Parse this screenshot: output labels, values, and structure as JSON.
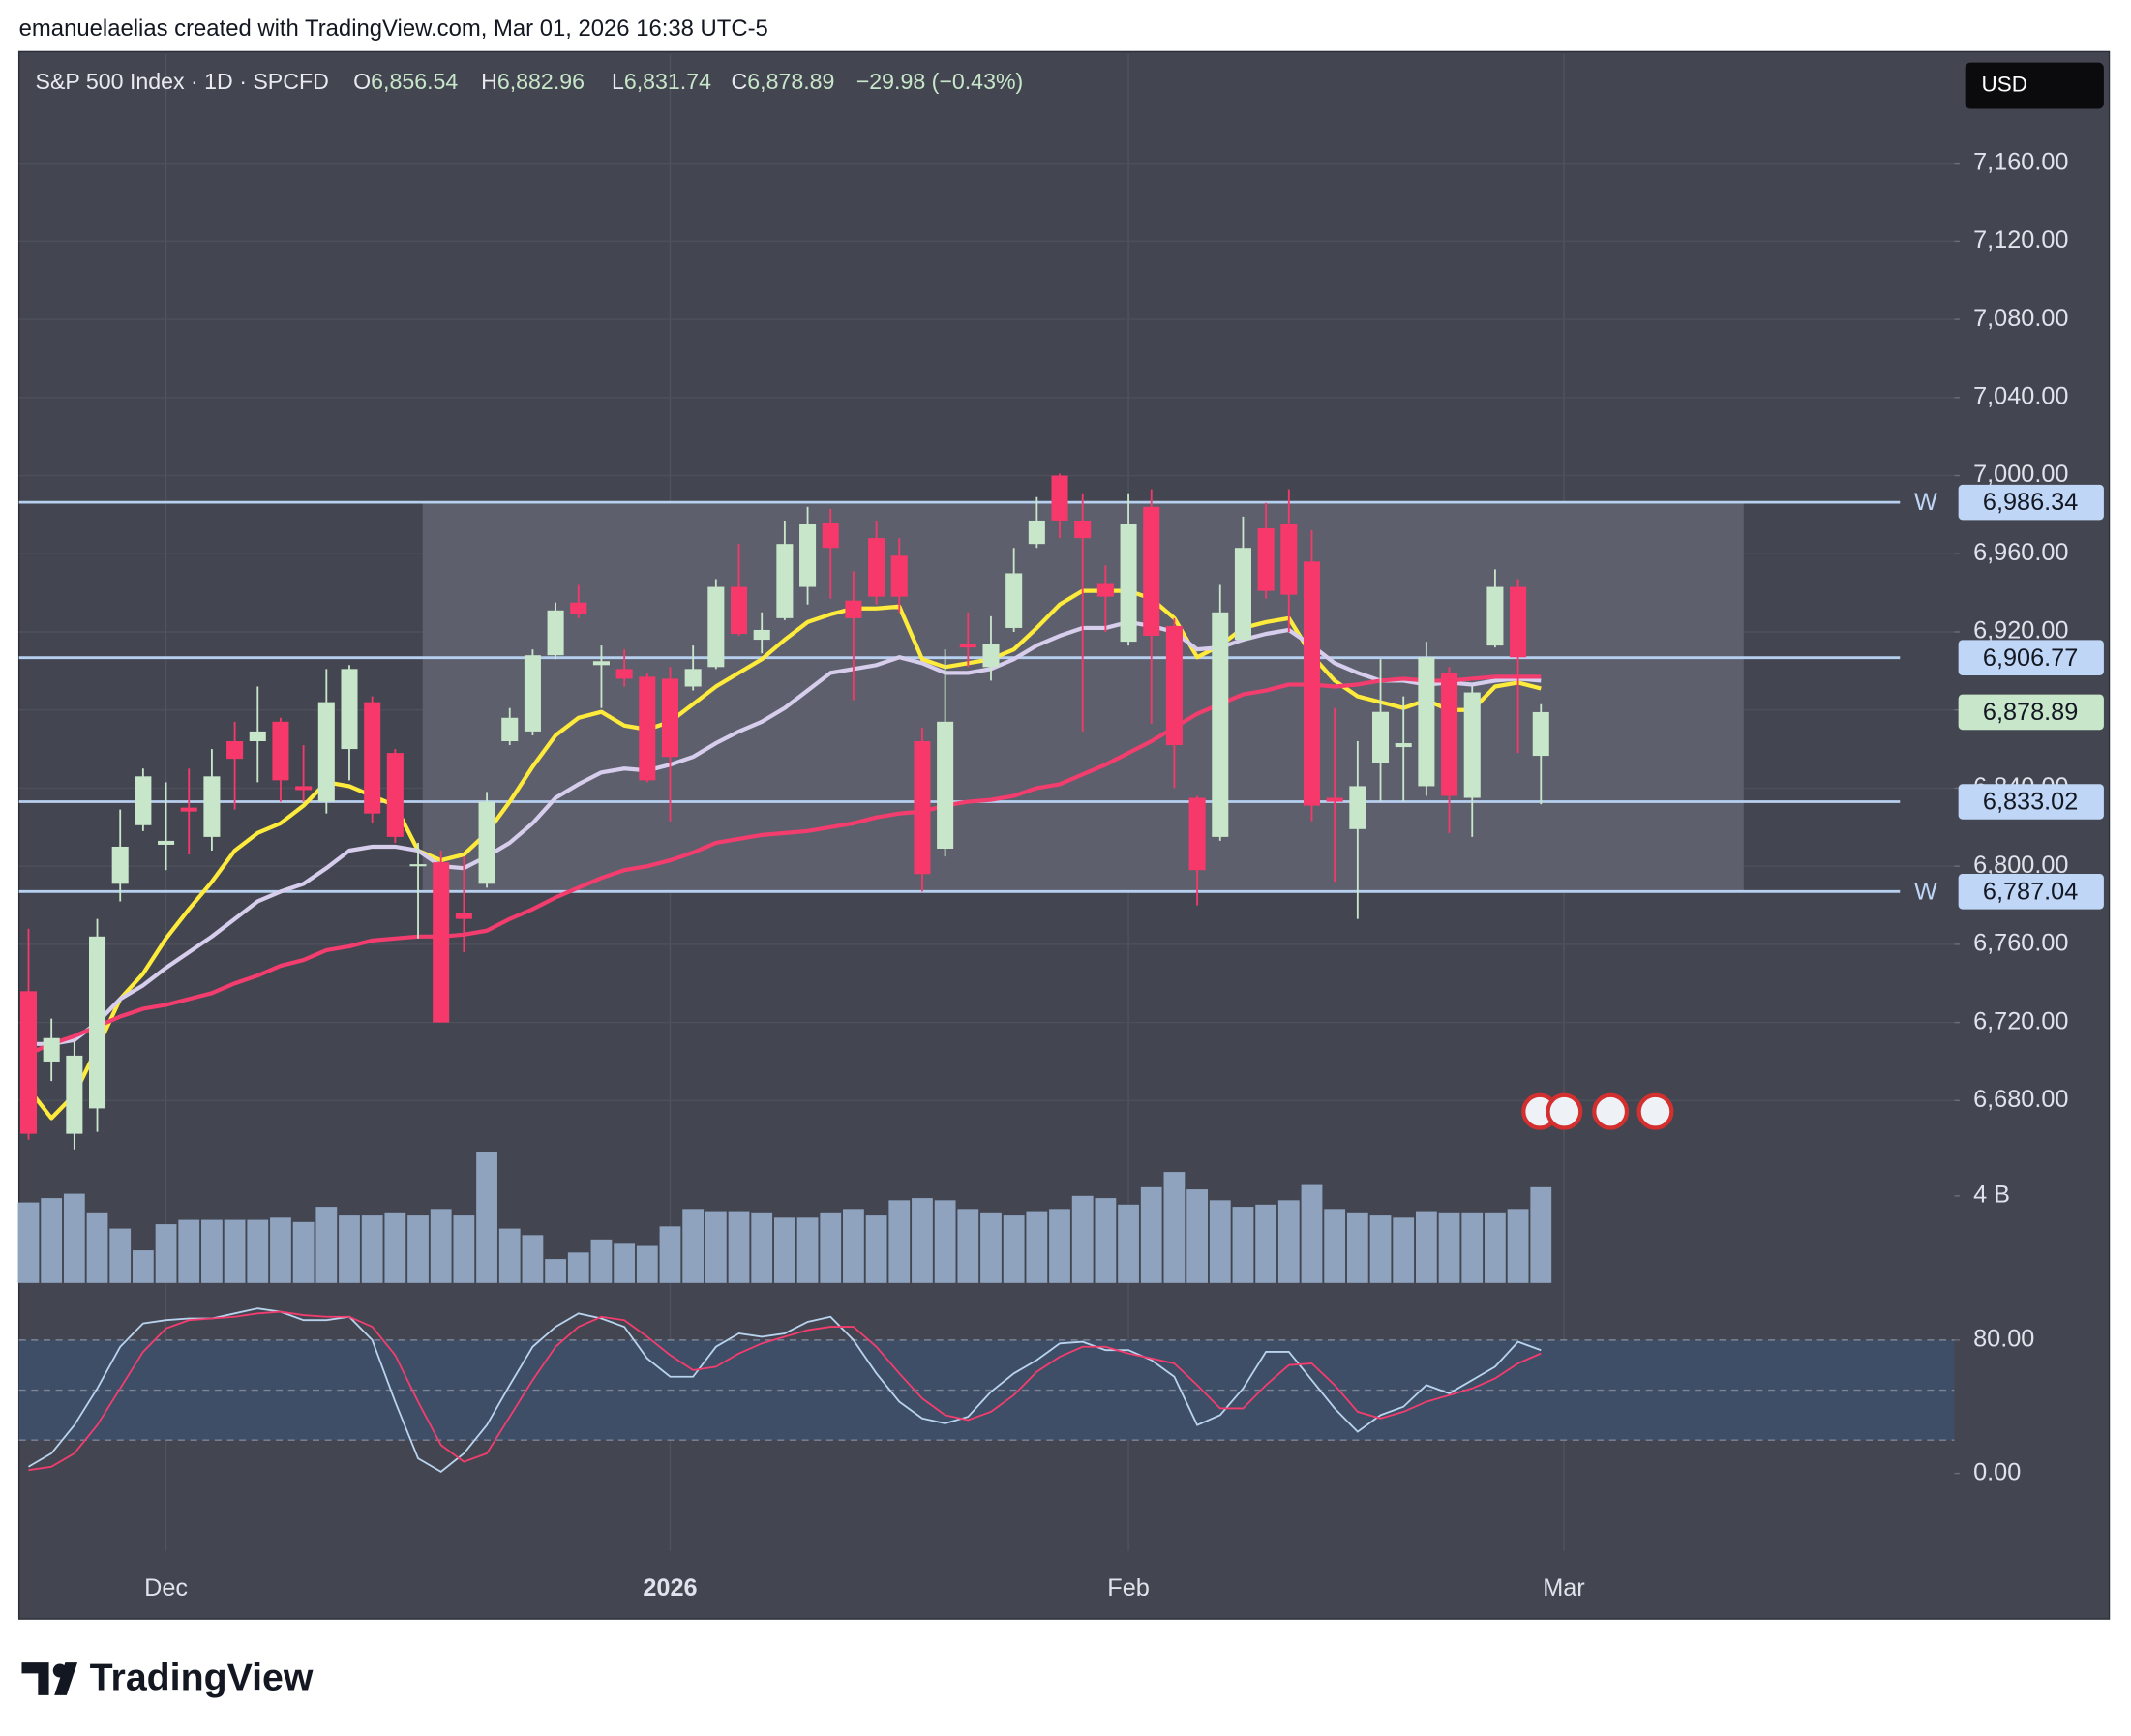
{
  "attribution": "emanuelaelias created with TradingView.com, Mar 01, 2026 16:38 UTC-5",
  "brand": "TradingView",
  "chart_data": {
    "type": "candlestick",
    "legend": {
      "symbol": "S&P 500 Index · 1D · SPCFD",
      "fields": [
        "O",
        "H",
        "L",
        "C"
      ],
      "field_values": [
        "6,856.54",
        "6,882.96",
        "6,831.74",
        "6,878.89"
      ],
      "change": "−29.98 (−0.43%)"
    },
    "currency": "USD",
    "xlim": [
      -0.415,
      84.04
    ],
    "xticks": [
      {
        "value": 6,
        "label": "Dec"
      },
      {
        "value": 28,
        "label": "2026"
      },
      {
        "value": 48,
        "label": "Feb"
      },
      {
        "value": 67,
        "label": "Mar"
      }
    ],
    "ylim": [
      6586.6,
      7215.7
    ],
    "yticks": [
      {
        "value": 6680,
        "label": "6,680.00"
      },
      {
        "value": 6720,
        "label": "6,720.00"
      },
      {
        "value": 6760,
        "label": "6,760.00"
      },
      {
        "value": 6800,
        "label": "6,800.00"
      },
      {
        "value": 6840,
        "label": "6,840.00"
      },
      {
        "value": 6880,
        "label": "6,880.00"
      },
      {
        "value": 6920,
        "label": "6,920.00"
      },
      {
        "value": 6960,
        "label": "6,960.00"
      },
      {
        "value": 7000,
        "label": "7,000.00"
      },
      {
        "value": 7040,
        "label": "7,040.00"
      },
      {
        "value": 7080,
        "label": "7,080.00"
      },
      {
        "value": 7120,
        "label": "7,120.00"
      },
      {
        "value": 7160,
        "label": "7,160.00"
      }
    ],
    "grid": true,
    "up_color": "#c8e6c9",
    "down_color": "#f7386a",
    "open": [
      6736,
      6700,
      6663,
      6676,
      6791,
      6821,
      6811,
      6830,
      6815,
      6864,
      6864,
      6874,
      6841,
      6833,
      6860,
      6884,
      6858,
      6800,
      6802,
      6776,
      6791,
      6864,
      6869,
      6908,
      6935,
      6903,
      6901,
      6897,
      6896,
      6892,
      6902,
      6943,
      6916,
      6927,
      6943,
      6976,
      6936,
      6968,
      6959,
      6864,
      6809,
      6914,
      6902,
      6922,
      6965,
      7000,
      6977,
      6945,
      6915,
      6984,
      6923,
      6835,
      6815,
      6916,
      6973,
      6975,
      6956,
      6835,
      6819,
      6853,
      6861,
      6841,
      6899,
      6835,
      6913,
      6943,
      6856.54
    ],
    "high": [
      6768,
      6722,
      6710,
      6773,
      6829,
      6850,
      6843,
      6850,
      6860,
      6874,
      6892,
      6876,
      6862,
      6901,
      6903,
      6887,
      6860,
      6812,
      6808,
      6805,
      6838,
      6881,
      6911,
      6935,
      6944,
      6913,
      6911,
      6899,
      6902,
      6913,
      6947,
      6965,
      6930,
      6977,
      6984,
      6983,
      6951,
      6977,
      6968,
      6871,
      6911,
      6930,
      6928,
      6963,
      6989,
      7001,
      6991,
      6954,
      6991,
      6993,
      6927,
      6836,
      6944,
      6979,
      6986,
      6993,
      6972,
      6881,
      6864,
      6906,
      6887,
      6915,
      6902,
      6892,
      6952,
      6947,
      6882.96
    ],
    "low": [
      6660,
      6690,
      6655,
      6664,
      6782,
      6818,
      6798,
      6806,
      6808,
      6829,
      6843,
      6833,
      6833,
      6827,
      6844,
      6822,
      6812,
      6763,
      6720,
      6756,
      6789,
      6862,
      6867,
      6906,
      6927,
      6881,
      6892,
      6843,
      6823,
      6890,
      6901,
      6918,
      6909,
      6926,
      6934,
      6937,
      6885,
      6934,
      6930,
      6787,
      6805,
      6902,
      6895,
      6920,
      6963,
      6968,
      6869,
      6920,
      6913,
      6873,
      6840,
      6780,
      6813,
      6915,
      6937,
      6920,
      6823,
      6792,
      6773,
      6833,
      6833,
      6836,
      6817,
      6815,
      6912,
      6858,
      6831.74
    ],
    "close": [
      6663,
      6712,
      6703,
      6764,
      6810,
      6846,
      6813,
      6828,
      6846,
      6855,
      6869,
      6844,
      6839,
      6884,
      6901,
      6827,
      6815,
      6801,
      6720,
      6773,
      6833,
      6876,
      6908,
      6931,
      6929,
      6905,
      6896,
      6844,
      6856,
      6901,
      6943,
      6919,
      6921,
      6965,
      6975,
      6963,
      6927,
      6938,
      6938,
      6796,
      6874,
      6912,
      6914,
      6950,
      6977,
      6977,
      6968,
      6938,
      6975,
      6918,
      6862,
      6798,
      6930,
      6963,
      6941,
      6939,
      6831,
      6833,
      6841,
      6879,
      6863,
      6907,
      6836,
      6889,
      6943,
      6907,
      6878.89
    ],
    "last_price_label": "6,878.89",
    "moving_averages": [
      {
        "color": "#ffeb3b",
        "values": [
          6686,
          6671,
          6683,
          6707,
          6732,
          6745,
          6763,
          6778,
          6792,
          6808,
          6817,
          6822,
          6831,
          6843,
          6841,
          6836,
          6831,
          6808,
          6803,
          6806,
          6817,
          6833,
          6851,
          6867,
          6876,
          6879,
          6872,
          6870,
          6874,
          6883,
          6892,
          6899,
          6906,
          6916,
          6925,
          6929,
          6932,
          6932,
          6933,
          6906,
          6902,
          6904,
          6906,
          6911,
          6922,
          6934,
          6941,
          6941,
          6941,
          6937,
          6927,
          6907,
          6913,
          6922,
          6925,
          6927,
          6908,
          6895,
          6887,
          6884,
          6881,
          6885,
          6880,
          6880,
          6892,
          6894,
          6891
        ]
      },
      {
        "color": "#d7cdec",
        "values": [
          6709,
          6709,
          6711,
          6720,
          6732,
          6739,
          6748,
          6756,
          6764,
          6773,
          6782,
          6787,
          6791,
          6799,
          6808,
          6810,
          6810,
          6808,
          6800,
          6799,
          6805,
          6812,
          6822,
          6835,
          6842,
          6848,
          6850,
          6849,
          6852,
          6856,
          6863,
          6869,
          6874,
          6881,
          6890,
          6899,
          6901,
          6903,
          6907,
          6904,
          6899,
          6899,
          6901,
          6906,
          6913,
          6918,
          6922,
          6922,
          6925,
          6923,
          6920,
          6911,
          6912,
          6916,
          6919,
          6921,
          6913,
          6904,
          6899,
          6895,
          6895,
          6893,
          6894,
          6893,
          6895,
          6896,
          6895
        ]
      },
      {
        "color": "#f23d6e",
        "values": [
          6704,
          6709,
          6713,
          6718,
          6723,
          6727,
          6729,
          6732,
          6735,
          6740,
          6744,
          6749,
          6752,
          6757,
          6759,
          6762,
          6763,
          6764,
          6764,
          6765,
          6767,
          6773,
          6778,
          6784,
          6789,
          6794,
          6798,
          6800,
          6803,
          6807,
          6812,
          6814,
          6816,
          6817,
          6818,
          6820,
          6822,
          6825,
          6827,
          6828,
          6831,
          6833,
          6834,
          6836,
          6840,
          6842,
          6847,
          6852,
          6858,
          6864,
          6871,
          6878,
          6883,
          6888,
          6890,
          6893,
          6893,
          6892,
          6893,
          6895,
          6896,
          6895,
          6895,
          6896,
          6897,
          6897,
          6897
        ]
      }
    ],
    "levels": [
      {
        "value": 6986.34,
        "label": "6,986.34",
        "tag": "W"
      },
      {
        "value": 6906.77,
        "label": "6,906.77"
      },
      {
        "value": 6833.02,
        "label": "6,833.02"
      },
      {
        "value": 6787.04,
        "label": "6,787.04",
        "tag": "W"
      }
    ],
    "volume": {
      "color": "#8fa3bf",
      "ylim": [
        0,
        7
      ],
      "yticks": [
        {
          "value": 4,
          "label": "4 B"
        }
      ],
      "values": [
        3.7,
        3.9,
        4.1,
        3.2,
        2.5,
        1.5,
        2.7,
        2.9,
        2.9,
        2.9,
        2.9,
        3.0,
        2.8,
        3.5,
        3.1,
        3.1,
        3.2,
        3.1,
        3.4,
        3.1,
        6.0,
        2.5,
        2.2,
        1.1,
        1.4,
        2.0,
        1.8,
        1.7,
        2.6,
        3.4,
        3.3,
        3.3,
        3.2,
        3.0,
        3.0,
        3.2,
        3.4,
        3.1,
        3.8,
        3.9,
        3.8,
        3.4,
        3.2,
        3.1,
        3.3,
        3.4,
        4.0,
        3.9,
        3.6,
        4.4,
        5.1,
        4.3,
        3.8,
        3.5,
        3.6,
        3.8,
        4.5,
        3.4,
        3.2,
        3.1,
        3.0,
        3.3,
        3.2,
        3.2,
        3.2,
        3.4,
        4.4
      ]
    },
    "stochastic": {
      "ylim": [
        -13.9,
        104.5
      ],
      "yticks": [
        {
          "value": 80,
          "label": "80.00"
        },
        {
          "value": 0,
          "label": "0.00"
        }
      ],
      "band": [
        20,
        80
      ],
      "midline": 50,
      "band_color": "#3d4e66",
      "series": [
        {
          "color": "#b9d3ee",
          "values": [
            4,
            12,
            29,
            51,
            76,
            90,
            92,
            93,
            93,
            96,
            99,
            97,
            92,
            92,
            94,
            80,
            43,
            9,
            1,
            12,
            29,
            53,
            76,
            88,
            96,
            93,
            88,
            69,
            58,
            58,
            76,
            84,
            82,
            84,
            91,
            94,
            80,
            60,
            43,
            33,
            30,
            34,
            49,
            60,
            68,
            78,
            79,
            74,
            74,
            68,
            58,
            29,
            35,
            51,
            73,
            73,
            56,
            39,
            25,
            35,
            40,
            53,
            48,
            56,
            64,
            79,
            74
          ]
        },
        {
          "color": "#f23d6e",
          "values": [
            2,
            4,
            12,
            29,
            51,
            73,
            87,
            92,
            93,
            94,
            96,
            97,
            95,
            94,
            94,
            88,
            71,
            43,
            17,
            7,
            12,
            34,
            56,
            76,
            88,
            94,
            92,
            82,
            71,
            62,
            64,
            72,
            78,
            82,
            86,
            88,
            88,
            76,
            60,
            45,
            35,
            32,
            37,
            47,
            61,
            70,
            76,
            76,
            72,
            69,
            66,
            53,
            39,
            39,
            53,
            65,
            66,
            53,
            37,
            33,
            37,
            43,
            47,
            51,
            57,
            66,
            72
          ]
        }
      ]
    }
  }
}
